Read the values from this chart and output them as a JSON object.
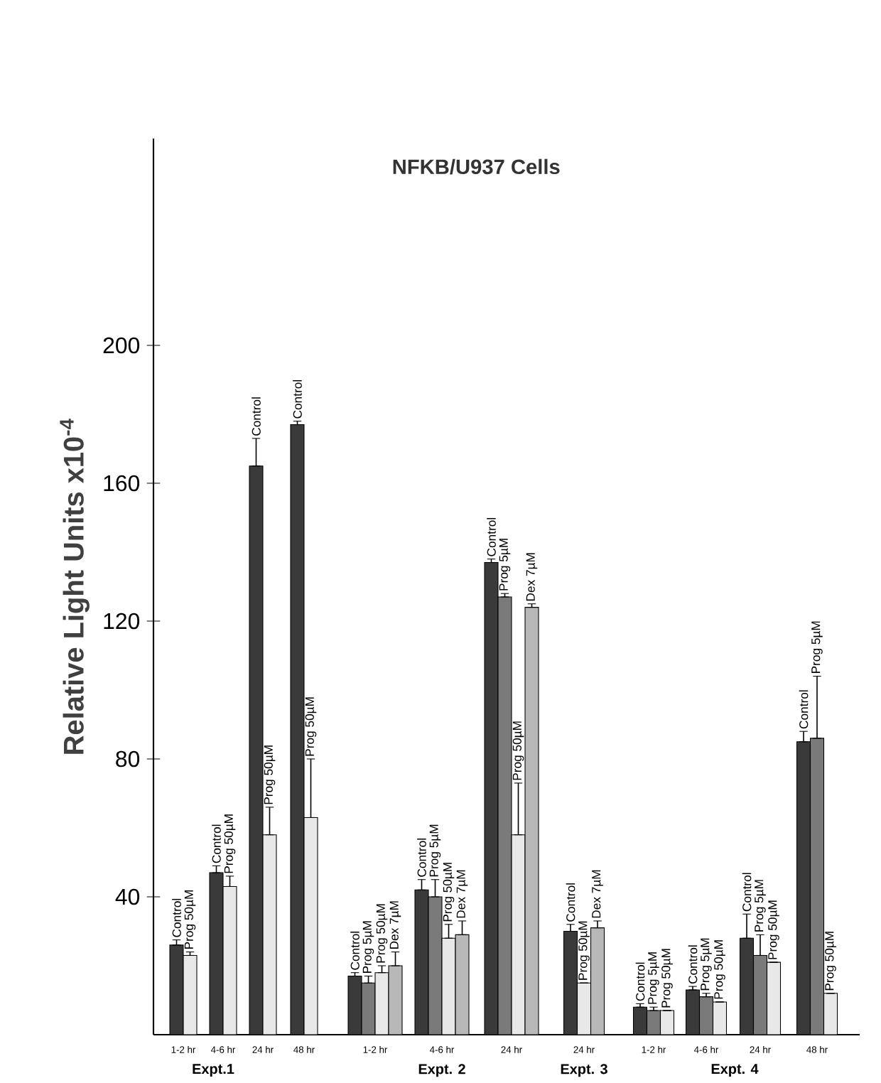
{
  "chart_data": {
    "type": "bar",
    "title": "NFKB/U937 Cells",
    "ylabel": "Relative Light Units x10$^{-4}$",
    "categories": [
      "1-2 hr",
      "4-6 hr",
      "24 hr",
      "48 hr",
      "1-2 hr",
      "4-6 hr",
      "24 hr",
      "24 hr",
      "1-2 hr",
      "4-6 hr",
      "24 hr",
      "48 hr"
    ],
    "ylim": [
      0,
      260
    ],
    "yticks": [
      40,
      80,
      120,
      160,
      200
    ],
    "annotations": [
      "Expt.1",
      "Expt. 2",
      "Expt. 3",
      "Expt. 4"
    ],
    "series": [
      {
        "name": "Control",
        "color": "#3a3a3a",
        "values": [
          26,
          47,
          165,
          177,
          17,
          42,
          137,
          30,
          8,
          13,
          28,
          85
        ],
        "errors": [
          [
            26,
            27.5
          ],
          [
            47,
            49
          ],
          [
            165,
            173
          ],
          [
            177,
            178
          ],
          [
            17,
            18
          ],
          [
            42,
            45
          ],
          [
            137,
            138
          ],
          [
            30,
            32
          ],
          [
            8,
            9
          ],
          [
            13,
            14
          ],
          [
            28,
            35
          ],
          [
            85,
            88
          ]
        ]
      },
      {
        "name": "Prog 5µM",
        "color": "#7a7a7a",
        "values": [
          null,
          null,
          null,
          null,
          15,
          40,
          127,
          null,
          7,
          11,
          23,
          86
        ],
        "errors": [
          null,
          null,
          null,
          null,
          [
            15,
            17
          ],
          [
            40,
            45
          ],
          [
            127,
            128
          ],
          null,
          [
            7,
            8
          ],
          [
            11,
            12
          ],
          [
            23,
            29
          ],
          [
            86,
            104
          ]
        ]
      },
      {
        "name": "Prog 50µM",
        "color": "#e8e8e8",
        "values": [
          23,
          43,
          58,
          63,
          18,
          28,
          58,
          15,
          7,
          9.5,
          21,
          12
        ],
        "errors": [
          [
            23,
            24
          ],
          [
            43,
            46
          ],
          [
            58,
            66
          ],
          [
            63,
            80
          ],
          [
            18,
            20
          ],
          [
            28,
            32
          ],
          [
            58,
            73
          ],
          null,
          null,
          null,
          null,
          null
        ]
      },
      {
        "name": "Dex 7µM",
        "color": "#b8b8b8",
        "values": [
          null,
          null,
          null,
          null,
          20,
          29,
          124,
          31,
          null,
          null,
          null,
          null
        ],
        "errors": [
          null,
          null,
          null,
          null,
          [
            20,
            24
          ],
          [
            29,
            33
          ],
          [
            124,
            125
          ],
          [
            31,
            33
          ],
          null,
          null,
          null,
          null
        ]
      }
    ]
  }
}
